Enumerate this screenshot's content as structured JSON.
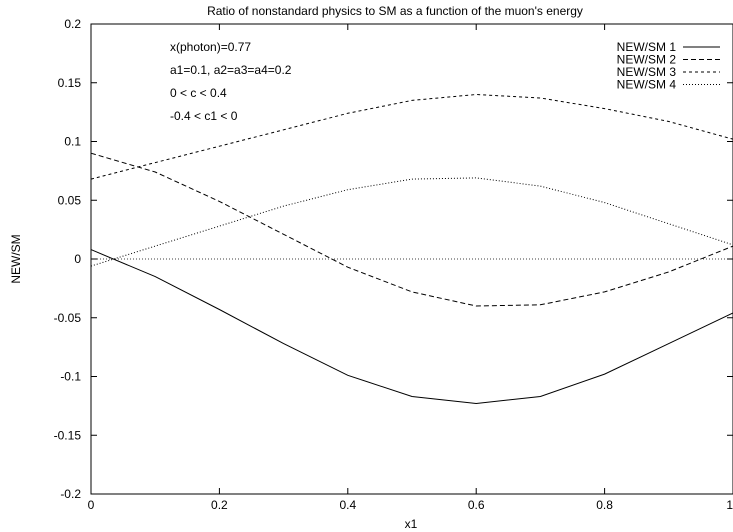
{
  "chart_data": {
    "type": "line",
    "title": "Ratio of nonstandard physics to SM as a function of the muon's energy",
    "xlabel": "x1",
    "ylabel": "NEW/SM",
    "xlim": [
      0,
      1
    ],
    "ylim": [
      -0.2,
      0.2
    ],
    "xticks": [
      0,
      0.2,
      0.4,
      0.6,
      0.8,
      1
    ],
    "xtick_labels": [
      "0",
      "0.2",
      "0.4",
      "0.6",
      "0.8",
      "1"
    ],
    "yticks": [
      -0.2,
      -0.15,
      -0.1,
      -0.05,
      0,
      0.05,
      0.1,
      0.15,
      0.2
    ],
    "ytick_labels": [
      "-0.2",
      "-0.15",
      "-0.1",
      "-0.05",
      "0",
      "0.05",
      "0.1",
      "0.15",
      "0.2"
    ],
    "grid": false,
    "legend_position": "top-right",
    "annotations": [
      "x(photon)=0.77",
      "a1=0.1, a2=a3=a4=0.2",
      "0 < c < 0.4",
      "-0.4 < c1 < 0"
    ],
    "x": [
      0,
      0.1,
      0.2,
      0.3,
      0.4,
      0.5,
      0.6,
      0.7,
      0.8,
      0.9,
      1.0
    ],
    "series": [
      {
        "name": "NEW/SM 1",
        "dash": "solid",
        "values": [
          0.008,
          -0.015,
          -0.043,
          -0.072,
          -0.099,
          -0.117,
          -0.123,
          -0.117,
          -0.098,
          -0.072,
          -0.046
        ]
      },
      {
        "name": "NEW/SM 2",
        "dash": "dashed",
        "values": [
          0.09,
          0.074,
          0.049,
          0.021,
          -0.007,
          -0.028,
          -0.04,
          -0.039,
          -0.028,
          -0.011,
          0.011
        ]
      },
      {
        "name": "NEW/SM 3",
        "dash": "short-dashed",
        "values": [
          0.068,
          0.082,
          0.096,
          0.11,
          0.124,
          0.135,
          0.14,
          0.137,
          0.128,
          0.117,
          0.102
        ]
      },
      {
        "name": "NEW/SM 4",
        "dash": "dotted",
        "values": [
          -0.006,
          0.011,
          0.028,
          0.045,
          0.059,
          0.068,
          0.069,
          0.062,
          0.048,
          0.03,
          0.012
        ]
      }
    ],
    "reference_lines": [
      {
        "axis": "y",
        "value": 0,
        "style": "dotted"
      }
    ]
  }
}
